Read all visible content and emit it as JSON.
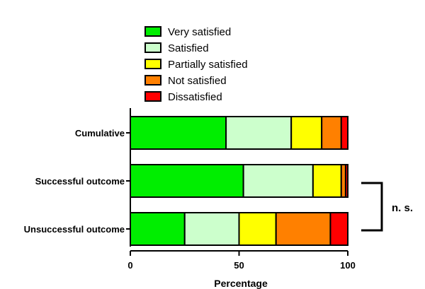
{
  "chart_data": {
    "type": "bar",
    "orientation": "horizontal",
    "stacked": true,
    "categories": [
      "Cumulative",
      "Successful outcome",
      "Unsuccessful outcome"
    ],
    "series": [
      {
        "name": "Very satisfied",
        "color": "#00ee00",
        "values": [
          44,
          52,
          25
        ]
      },
      {
        "name": "Satisfied",
        "color": "#ccffcc",
        "values": [
          30,
          32,
          25
        ]
      },
      {
        "name": "Partially satisfied",
        "color": "#ffff00",
        "values": [
          14,
          13,
          17
        ]
      },
      {
        "name": "Not satisfied",
        "color": "#ff8000",
        "values": [
          9,
          2,
          25
        ]
      },
      {
        "name": "Dissatisfied",
        "color": "#ff0000",
        "values": [
          3,
          1,
          8
        ]
      }
    ],
    "xlabel": "Percentage",
    "xlim": [
      0,
      100
    ],
    "xticks": [
      0,
      50,
      100
    ],
    "legend_position": "top",
    "grid": false,
    "annotation": {
      "text": "n. s.",
      "between": [
        "Successful outcome",
        "Unsuccessful outcome"
      ]
    }
  }
}
